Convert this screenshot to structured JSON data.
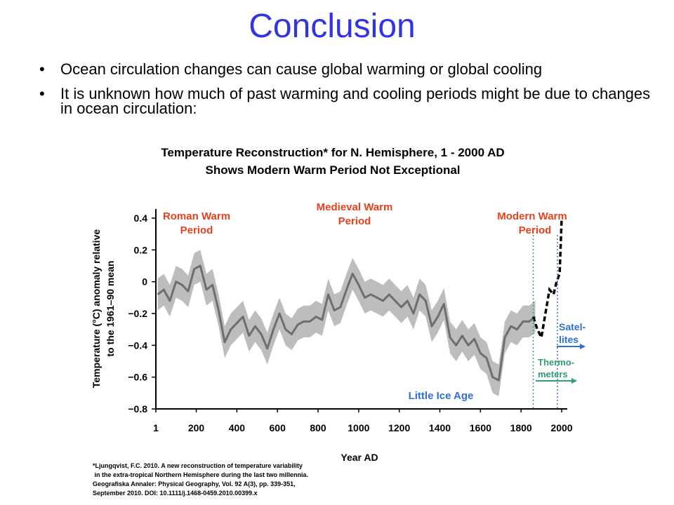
{
  "slide": {
    "title": "Conclusion",
    "bullets": [
      "Ocean circulation changes can cause global warming or global cooling",
      "It is unknown how much of past warming and cooling periods might be due to changes in ocean circulation:"
    ]
  },
  "chart_data": {
    "type": "line",
    "title": "Temperature Reconstruction* for N. Hemisphere, 1 - 2000 AD",
    "subtitle": "Shows Modern Warm Period Not Exceptional",
    "xlabel": "Year AD",
    "ylabel_line1": "Temperature (°C) anomaly relative",
    "ylabel_line2": "to the 1961–90 mean",
    "xlim": [
      1,
      2000
    ],
    "ylim": [
      -0.8,
      0.4
    ],
    "x_ticks": [
      "1",
      "200",
      "400",
      "600",
      "800",
      "1000",
      "1200",
      "1400",
      "1600",
      "1800",
      "2000"
    ],
    "y_ticks": [
      "0.4",
      "0.2",
      "0",
      "−0.2",
      "−0.4",
      "−0.6",
      "−0.8"
    ],
    "series": [
      {
        "kind": "reconstruction",
        "x": [
          10,
          40,
          70,
          100,
          130,
          160,
          190,
          220,
          250,
          280,
          310,
          340,
          370,
          400,
          430,
          460,
          490,
          520,
          550,
          580,
          610,
          640,
          670,
          700,
          730,
          760,
          790,
          820,
          850,
          880,
          910,
          940,
          970,
          1000,
          1030,
          1060,
          1090,
          1120,
          1150,
          1180,
          1210,
          1240,
          1270,
          1300,
          1330,
          1360,
          1390,
          1420,
          1450,
          1480,
          1510,
          1540,
          1570,
          1600,
          1630,
          1660,
          1690,
          1720,
          1750,
          1780,
          1810,
          1840,
          1870
        ],
        "values": [
          -0.08,
          -0.05,
          -0.12,
          0.0,
          -0.02,
          -0.06,
          0.08,
          0.1,
          -0.05,
          -0.02,
          -0.18,
          -0.38,
          -0.3,
          -0.26,
          -0.22,
          -0.34,
          -0.28,
          -0.33,
          -0.42,
          -0.3,
          -0.2,
          -0.3,
          -0.33,
          -0.27,
          -0.25,
          -0.25,
          -0.22,
          -0.24,
          -0.08,
          -0.18,
          -0.16,
          -0.05,
          0.05,
          -0.02,
          -0.1,
          -0.08,
          -0.1,
          -0.12,
          -0.08,
          -0.12,
          -0.16,
          -0.12,
          -0.2,
          -0.08,
          -0.12,
          -0.28,
          -0.22,
          -0.14,
          -0.35,
          -0.4,
          -0.34,
          -0.4,
          -0.36,
          -0.45,
          -0.48,
          -0.6,
          -0.62,
          -0.35,
          -0.28,
          -0.3,
          -0.25,
          -0.25,
          -0.22
        ],
        "uncertainty": 0.1,
        "color": "#6e6e6e",
        "band_color": "#bdbdbd"
      },
      {
        "kind": "instrumental",
        "x": [
          1860,
          1880,
          1900,
          1920,
          1940,
          1960,
          1975,
          1990,
          2000
        ],
        "values": [
          -0.22,
          -0.3,
          -0.35,
          -0.2,
          -0.05,
          -0.08,
          0.0,
          0.05,
          0.4
        ],
        "color": "#000000"
      }
    ],
    "markers": [
      {
        "label": "Thermo-meters",
        "x": 1860,
        "color": "#2e9f6e"
      },
      {
        "label": "Satel-lites",
        "x": 1979,
        "color": "#2e6fd8"
      }
    ],
    "annotations": {
      "roman_line1": "Roman Warm",
      "roman_line2": "Period",
      "medieval_line1": "Medieval Warm",
      "medieval_line2": "Period",
      "modern_line1": "Modern Warm",
      "modern_line2": "Period",
      "little_ice_age": "Little Ice Age",
      "satellites_line1": "Satel-",
      "satellites_line2": "lites",
      "thermometers_line1": "Thermo-",
      "thermometers_line2": "meters"
    },
    "citation": [
      "*Ljungqvist, F.C. 2010. A new reconstruction of temperature variability",
      " in the extra-tropical Northern Hemisphere during the last two millennia.",
      "Geografiska Annaler: Physical Geography, Vol. 92 A(3), pp. 339-351,",
      "September 2010. DOI: 10.1111/j.1468-0459.2010.00399.x"
    ],
    "colors": {
      "title": "#3333e6",
      "period_labels": "#e8401c",
      "satellites": "#2e6fd8",
      "thermometers": "#2e9f6e"
    }
  }
}
